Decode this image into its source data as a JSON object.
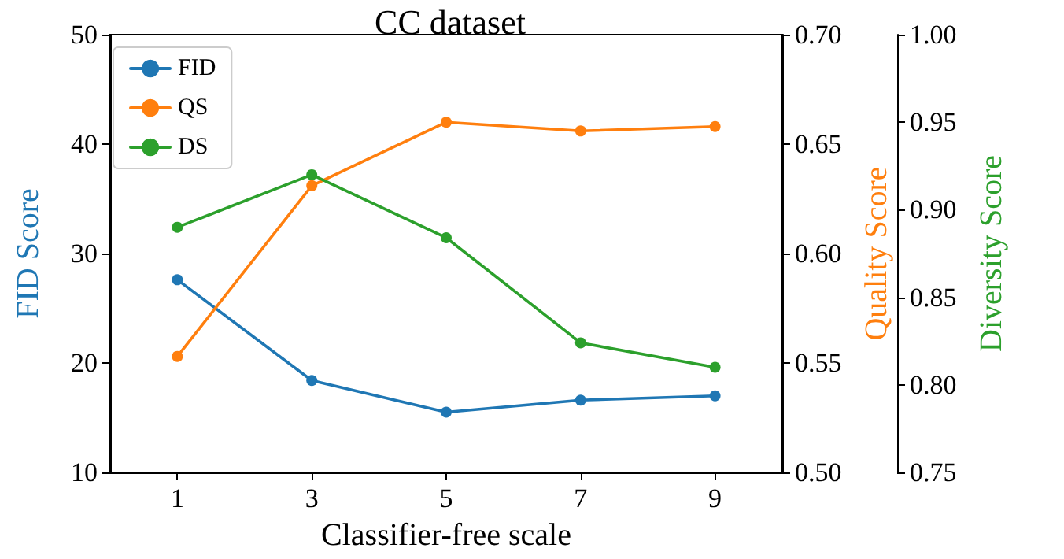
{
  "chart_data": {
    "type": "line",
    "title": "CC dataset",
    "xlabel": "Classifier-free scale",
    "ylabel": "FID Score",
    "y2label": "Quality Score",
    "y3label": "Diversity Score",
    "x": [
      1,
      3,
      5,
      7,
      9
    ],
    "series": [
      {
        "name": "FID",
        "color": "#1f77b4",
        "values": [
          27.6,
          18.4,
          15.5,
          16.6,
          17.0
        ]
      },
      {
        "name": "QS",
        "color": "#ff7f0e",
        "axis": "y2",
        "values": [
          0.553,
          0.631,
          0.66,
          0.656,
          0.658
        ]
      },
      {
        "name": "DS",
        "color": "#2ca02c",
        "axis": "y3",
        "values": [
          0.89,
          0.92,
          0.884,
          0.824,
          0.81
        ]
      }
    ],
    "xlim": [
      0,
      10
    ],
    "xticks": [
      1,
      3,
      5,
      7,
      9
    ],
    "ylim": [
      10,
      50
    ],
    "yticks": [
      10,
      20,
      30,
      40,
      50
    ],
    "y2lim": [
      0.5,
      0.7
    ],
    "y2ticks": [
      {
        "value": 0.5,
        "label": "0.50"
      },
      {
        "value": 0.55,
        "label": "0.55"
      },
      {
        "value": 0.6,
        "label": "0.60"
      },
      {
        "value": 0.65,
        "label": "0.65"
      },
      {
        "value": 0.7,
        "label": "0.70"
      }
    ],
    "y3lim": [
      0.75,
      1.0
    ],
    "y3ticks": [
      {
        "value": 0.75,
        "label": "0.75"
      },
      {
        "value": 0.8,
        "label": "0.80"
      },
      {
        "value": 0.85,
        "label": "0.85"
      },
      {
        "value": 0.9,
        "label": "0.90"
      },
      {
        "value": 0.95,
        "label": "0.95"
      },
      {
        "value": 1.0,
        "label": "1.00"
      }
    ],
    "grid": false,
    "legend": "top left",
    "marker": "circle",
    "line_style": "solid"
  }
}
